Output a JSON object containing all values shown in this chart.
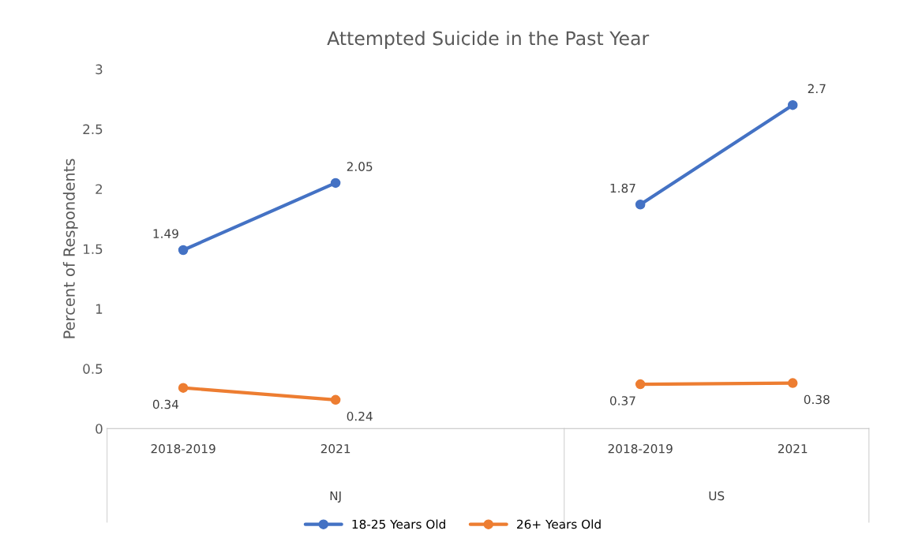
{
  "chart_data": {
    "type": "line",
    "title": "Attempted Suicide in the Past Year",
    "ylabel": "Percent of Respondents",
    "categories": [
      "2018-2019",
      "2021",
      null,
      "2018-2019",
      "2021"
    ],
    "annotations": [
      "NJ",
      "US"
    ],
    "series": [
      {
        "name": "18-25 Years Old",
        "color": "#4472c4",
        "values": [
          1.49,
          2.05,
          null,
          1.87,
          2.7
        ]
      },
      {
        "name": "26+ Years Old",
        "color": "#ed7d31",
        "values": [
          0.34,
          0.24,
          null,
          0.37,
          0.38
        ]
      }
    ],
    "ylim": [
      0,
      3
    ],
    "yticks": [
      0,
      0.5,
      1,
      1.5,
      2,
      2.5,
      3
    ],
    "data_labels": true,
    "legend": "bottom",
    "marker": "circle",
    "line_style": "solid",
    "grid": false
  }
}
